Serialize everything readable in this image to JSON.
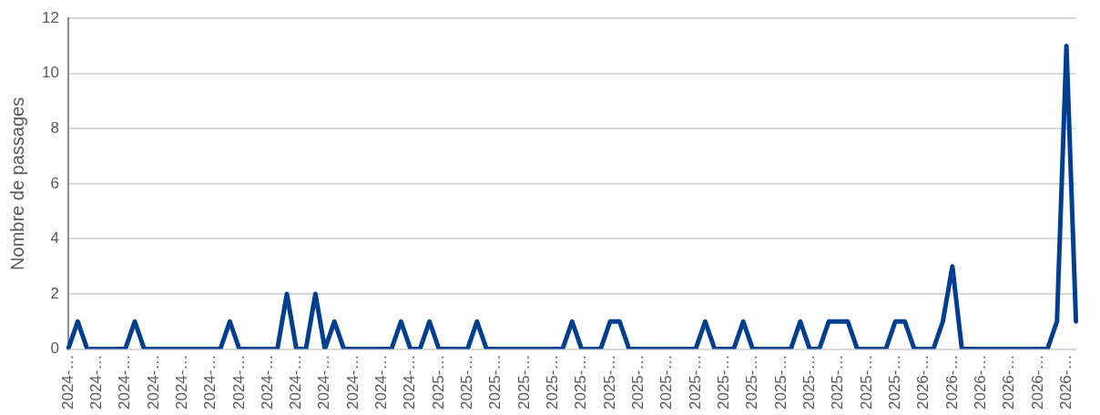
{
  "chart_data": {
    "type": "line",
    "ylabel": "Nombre de passages",
    "categories": [
      "2024-…",
      null,
      null,
      "2024-…",
      null,
      null,
      "2024-…",
      null,
      null,
      "2024-…",
      null,
      null,
      "2024-…",
      null,
      null,
      "2024-…",
      null,
      null,
      "2024-…",
      null,
      null,
      "2024-…",
      null,
      null,
      "2024-…",
      null,
      null,
      "2024-…",
      null,
      null,
      "2024-…",
      null,
      null,
      "2024-…",
      null,
      null,
      "2024-…",
      null,
      null,
      "2025-…",
      null,
      null,
      "2025-…",
      null,
      null,
      "2025-…",
      null,
      null,
      "2025-…",
      null,
      null,
      "2025-…",
      null,
      null,
      "2025-…",
      null,
      null,
      "2025-…",
      null,
      null,
      "2025-…",
      null,
      null,
      "2025-…",
      null,
      null,
      "2025-…",
      null,
      null,
      "2025-…",
      null,
      null,
      "2025-…",
      null,
      null,
      "2025-…",
      null,
      null,
      "2025-…",
      null,
      null,
      "2025-…",
      null,
      null,
      "2025-…",
      null,
      null,
      "2025-…",
      null,
      null,
      "2026-…",
      null,
      null,
      "2026-…",
      null,
      null,
      "2026-…",
      null,
      null,
      "2026-…",
      null,
      null,
      "2026-…",
      null,
      null,
      "2026-…",
      null
    ],
    "series": [
      {
        "color": "#003f8f",
        "values": [
          0,
          1,
          0,
          0,
          0,
          0,
          0,
          1,
          0,
          0,
          0,
          0,
          0,
          0,
          0,
          0,
          0,
          1,
          0,
          0,
          0,
          0,
          0,
          2,
          0,
          0,
          2,
          0,
          1,
          0,
          0,
          0,
          0,
          0,
          0,
          1,
          0,
          0,
          1,
          0,
          0,
          0,
          0,
          1,
          0,
          0,
          0,
          0,
          0,
          0,
          0,
          0,
          0,
          1,
          0,
          0,
          0,
          1,
          1,
          0,
          0,
          0,
          0,
          0,
          0,
          0,
          0,
          1,
          0,
          0,
          0,
          1,
          0,
          0,
          0,
          0,
          0,
          1,
          0,
          0,
          1,
          1,
          1,
          0,
          0,
          0,
          0,
          1,
          1,
          0,
          0,
          0,
          1,
          3,
          0,
          0,
          0,
          0,
          0,
          0,
          0,
          0,
          0,
          0,
          1,
          11,
          1
        ]
      }
    ],
    "ylim": [
      0,
      12
    ],
    "yticks": [
      0,
      2,
      4,
      6,
      8,
      10,
      12
    ],
    "grid": "y",
    "legend": false,
    "marker": "none",
    "line_style": "solid"
  }
}
